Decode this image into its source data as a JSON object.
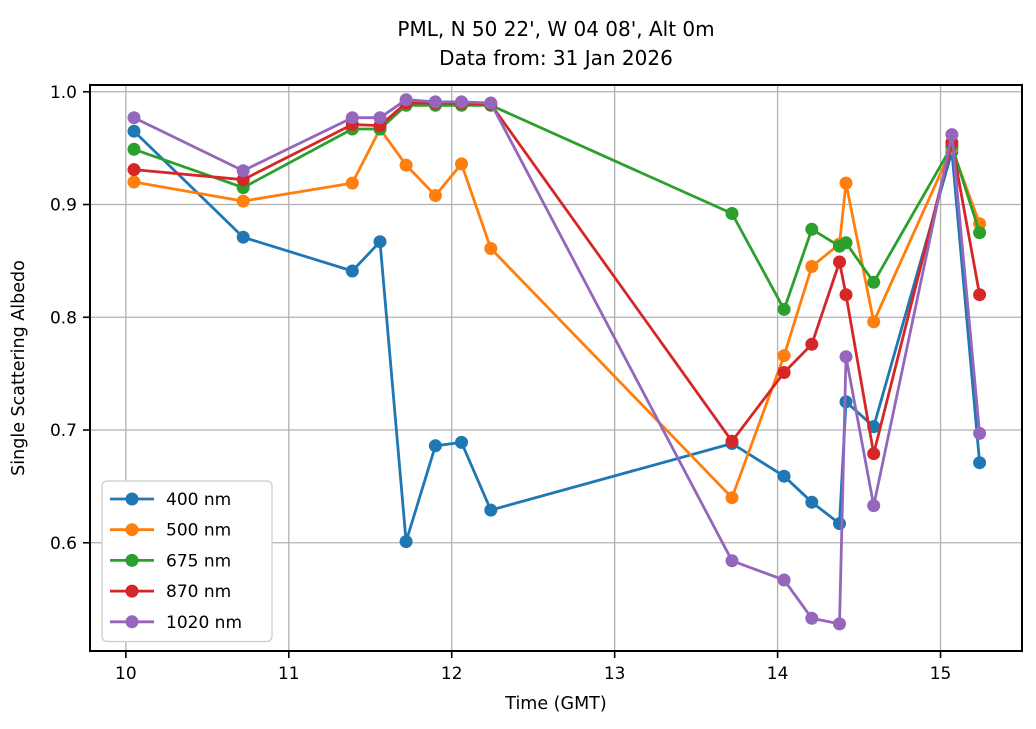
{
  "figure": {
    "title_line1": "PML, N 50 22', W 04 08', Alt 0m",
    "title_line2": "Data from: 31 Jan 2026"
  },
  "chart_data": {
    "type": "line",
    "title": "PML, N 50 22', W 04 08', Alt 0m\nData from: 31 Jan 2026",
    "xlabel": "Time (GMT)",
    "ylabel": "Single Scattering Albedo",
    "xlim": [
      9.78,
      15.5
    ],
    "ylim": [
      0.504,
      1.006
    ],
    "xticks": [
      10,
      11,
      12,
      13,
      14,
      15
    ],
    "yticks": [
      0.6,
      0.7,
      0.8,
      0.9,
      1.0
    ],
    "grid": true,
    "grid_color": "#b0b0b0",
    "legend_position": "lower left",
    "marker": "o",
    "x": [
      10.05,
      10.72,
      11.39,
      11.56,
      11.72,
      11.9,
      12.06,
      12.24,
      13.72,
      14.04,
      14.21,
      14.38,
      14.42,
      14.59,
      15.07,
      15.24
    ],
    "series": [
      {
        "name": "400 nm",
        "color": "#1f77b4",
        "values": [
          0.965,
          0.871,
          0.841,
          0.867,
          0.601,
          0.686,
          0.689,
          0.629,
          0.688,
          0.659,
          0.636,
          0.617,
          0.725,
          0.703,
          0.947,
          0.671
        ]
      },
      {
        "name": "500 nm",
        "color": "#ff7f0e",
        "values": [
          0.92,
          0.903,
          0.919,
          0.967,
          0.935,
          0.908,
          0.936,
          0.861,
          0.64,
          0.766,
          0.845,
          0.865,
          0.919,
          0.796,
          0.95,
          0.883
        ]
      },
      {
        "name": "675 nm",
        "color": "#2ca02c",
        "values": [
          0.949,
          0.915,
          0.967,
          0.967,
          0.988,
          0.988,
          0.988,
          0.988,
          0.892,
          0.807,
          0.878,
          0.863,
          0.866,
          0.831,
          0.952,
          0.875
        ]
      },
      {
        "name": "870 nm",
        "color": "#d62728",
        "values": [
          0.931,
          0.922,
          0.971,
          0.97,
          0.99,
          0.99,
          0.99,
          0.989,
          0.69,
          0.751,
          0.776,
          0.849,
          0.82,
          0.679,
          0.955,
          0.82
        ]
      },
      {
        "name": "1020 nm",
        "color": "#9467bd",
        "values": [
          0.977,
          0.93,
          0.977,
          0.977,
          0.993,
          0.991,
          0.991,
          0.99,
          0.584,
          0.567,
          0.533,
          0.528,
          0.765,
          0.633,
          0.962,
          0.697
        ]
      }
    ]
  }
}
